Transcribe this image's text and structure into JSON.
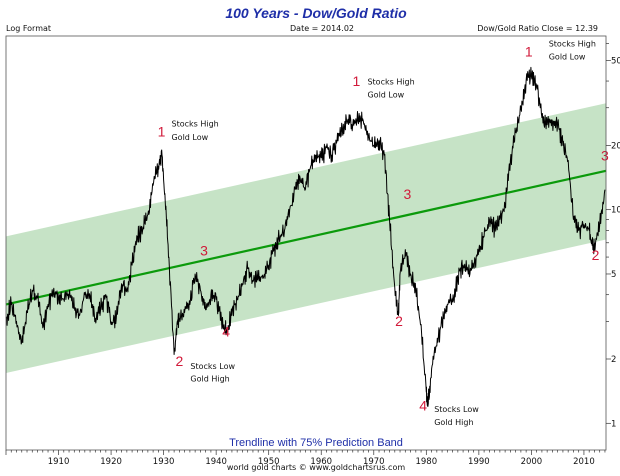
{
  "chart_data": {
    "type": "line",
    "title": "100 Years - Dow/Gold Ratio",
    "subtitle_left": "Log Format",
    "subtitle_center": "Date = 2014.02",
    "subtitle_right": "Dow/Gold Ratio Close = 12.39",
    "footer": "Trendline with 75% Prediction Band",
    "credit": "world gold charts © www.goldchartsrus.com",
    "y_scale": "log",
    "xlim": [
      1900,
      2014.2
    ],
    "ylim": [
      0.75,
      65
    ],
    "x_ticks": [
      1910,
      1920,
      1930,
      1940,
      1950,
      1960,
      1970,
      1980,
      1990,
      2000,
      2010
    ],
    "y_ticks": [
      1,
      2,
      5,
      10,
      20,
      50
    ],
    "colors": {
      "series": "#000000",
      "trend": "#0b9a0b",
      "band": "#c6e3c6",
      "title": "#1f2fa8",
      "markers": "#d11a3a"
    },
    "series": [
      {
        "name": "Dow/Gold Ratio",
        "x": [
          1900,
          1901,
          1902,
          1903,
          1904,
          1905,
          1906,
          1907,
          1908,
          1909,
          1910,
          1911,
          1912,
          1913,
          1914,
          1915,
          1916,
          1917,
          1918,
          1919,
          1920,
          1921,
          1922,
          1923,
          1924,
          1925,
          1926,
          1927,
          1928,
          1929,
          1929.7,
          1930.3,
          1931,
          1932,
          1932.6,
          1933,
          1934,
          1935,
          1936,
          1937,
          1938,
          1939,
          1940,
          1941,
          1942,
          1943,
          1944,
          1945,
          1946,
          1947,
          1948,
          1949,
          1950,
          1951,
          1952,
          1953,
          1954,
          1955,
          1956,
          1957,
          1958,
          1959,
          1960,
          1961,
          1962,
          1963,
          1964,
          1965,
          1966,
          1967,
          1968,
          1969,
          1970,
          1971,
          1972,
          1973,
          1974,
          1974.7,
          1975,
          1976,
          1977,
          1978,
          1979,
          1980,
          1980.3,
          1981,
          1982,
          1983,
          1984,
          1985,
          1986,
          1987,
          1988,
          1989,
          1990,
          1991,
          1992,
          1993,
          1994,
          1995,
          1996,
          1997,
          1998,
          1999,
          2000,
          2001,
          2002,
          2003,
          2004,
          2005,
          2006,
          2007,
          2008,
          2009,
          2010,
          2011,
          2011.7,
          2012,
          2013,
          2014
        ],
        "values": [
          3.1,
          3.6,
          3.0,
          2.4,
          3.3,
          4.2,
          3.9,
          2.8,
          3.6,
          4.1,
          3.9,
          3.8,
          4.0,
          3.5,
          3.2,
          4.0,
          3.9,
          3.1,
          3.4,
          4.0,
          2.9,
          3.1,
          4.5,
          4.2,
          5.5,
          7.5,
          8.0,
          9.5,
          13.0,
          16.0,
          18.0,
          11.0,
          6.0,
          2.1,
          3.0,
          3.1,
          3.3,
          3.6,
          5.0,
          4.2,
          3.4,
          4.0,
          3.8,
          3.1,
          2.7,
          3.2,
          3.8,
          4.5,
          5.3,
          4.6,
          4.8,
          4.8,
          5.5,
          6.5,
          7.3,
          8.0,
          10.0,
          12.5,
          14.0,
          12.5,
          16.0,
          18.0,
          17.5,
          19.5,
          18.0,
          21.0,
          23.5,
          26.0,
          25.0,
          26.0,
          26.0,
          22.0,
          20.0,
          21.0,
          18.0,
          9.0,
          4.3,
          3.2,
          5.0,
          6.5,
          5.0,
          4.2,
          2.9,
          1.4,
          1.2,
          1.8,
          2.3,
          3.0,
          3.6,
          3.7,
          4.8,
          5.5,
          5.0,
          5.4,
          6.5,
          7.5,
          9.0,
          8.2,
          9.0,
          10.5,
          17.0,
          23.0,
          30.0,
          40.0,
          42.0,
          38.0,
          27.0,
          25.0,
          26.0,
          25.5,
          20.0,
          17.0,
          9.0,
          8.0,
          8.5,
          8.0,
          6.5,
          7.0,
          8.5,
          12.4
        ]
      }
    ],
    "trendline": {
      "name": "Trendline",
      "x": [
        1900,
        2014.2
      ],
      "values": [
        3.6,
        15.2
      ]
    },
    "band": {
      "name": "75% Prediction Band",
      "upper": [
        7.5,
        31.5
      ],
      "lower": [
        1.72,
        7.25
      ]
    },
    "annotations": [
      {
        "x": 1929.6,
        "y": 22.0,
        "label": "1",
        "kind": "marker"
      },
      {
        "x": 1966.7,
        "y": 38.0,
        "label": "1",
        "kind": "marker"
      },
      {
        "x": 1999.5,
        "y": 52.0,
        "label": "1",
        "kind": "marker"
      },
      {
        "x": 1933.0,
        "y": 1.85,
        "label": "2",
        "kind": "marker"
      },
      {
        "x": 1974.8,
        "y": 2.85,
        "label": "2",
        "kind": "marker"
      },
      {
        "x": 2012.2,
        "y": 5.8,
        "label": "2",
        "kind": "marker"
      },
      {
        "x": 1937.7,
        "y": 6.1,
        "label": "3",
        "kind": "marker"
      },
      {
        "x": 1976.4,
        "y": 11.2,
        "label": "3",
        "kind": "marker"
      },
      {
        "x": 2014.0,
        "y": 17.0,
        "label": "3",
        "kind": "marker"
      },
      {
        "x": 1941.9,
        "y": 2.55,
        "label": "4",
        "kind": "marker"
      },
      {
        "x": 1979.4,
        "y": 1.15,
        "label": "4",
        "kind": "marker"
      },
      {
        "x": 1931.5,
        "y": 24.5,
        "label": "Stocks High",
        "kind": "note"
      },
      {
        "x": 1931.5,
        "y": 21.2,
        "label": "Gold Low",
        "kind": "note"
      },
      {
        "x": 1968.8,
        "y": 38.5,
        "label": "Stocks High",
        "kind": "note"
      },
      {
        "x": 1968.8,
        "y": 33.5,
        "label": "Gold Low",
        "kind": "note"
      },
      {
        "x": 2003.3,
        "y": 58.0,
        "label": "Stocks High",
        "kind": "note"
      },
      {
        "x": 2003.3,
        "y": 50.5,
        "label": "Gold Low",
        "kind": "note"
      },
      {
        "x": 1935.1,
        "y": 1.8,
        "label": "Stocks Low",
        "kind": "note"
      },
      {
        "x": 1935.1,
        "y": 1.57,
        "label": "Gold High",
        "kind": "note"
      },
      {
        "x": 1981.5,
        "y": 1.13,
        "label": "Stocks Low",
        "kind": "note"
      },
      {
        "x": 1981.5,
        "y": 0.98,
        "label": "Gold High",
        "kind": "note"
      }
    ]
  }
}
